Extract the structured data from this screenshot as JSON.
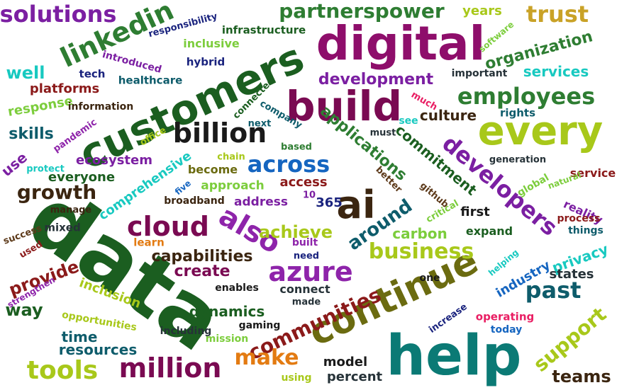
{
  "colors": {
    "purple": "#7b1fa2",
    "magenta": "#8e0e6b",
    "darkmagenta": "#7a0a52",
    "green": "#2e7d32",
    "darkgreen": "#1b5e20",
    "lime": "#a8c81a",
    "olive": "#6b6b10",
    "teal": "#0b7a75",
    "darkteal": "#0e5c6b",
    "cyan": "#18c9c0",
    "blue": "#1565c0",
    "navy": "#1a237e",
    "brown": "#5d3a1a",
    "darkbrown": "#3b2510",
    "orange": "#e37b12",
    "gold": "#c9a227",
    "red": "#c62828",
    "maroon": "#8b1a1a",
    "pink": "#e91e63",
    "violet": "#8e24aa",
    "lightgreen": "#7ccd3c",
    "darkslate": "#263238",
    "black": "#1a1a1a"
  },
  "words": [
    {
      "text": "data",
      "color": "darkgreen"
    },
    {
      "text": "help",
      "color": "teal"
    },
    {
      "text": "digital",
      "color": "magenta"
    },
    {
      "text": "customers",
      "color": "darkgreen"
    },
    {
      "text": "build",
      "color": "darkmagenta"
    },
    {
      "text": "every",
      "color": "lime"
    },
    {
      "text": "continue",
      "color": "olive"
    },
    {
      "text": "ai",
      "color": "darkbrown"
    },
    {
      "text": "azure",
      "color": "violet"
    },
    {
      "text": "also",
      "color": "violet"
    },
    {
      "text": "cloud",
      "color": "darkmagenta"
    },
    {
      "text": "million",
      "color": "darkmagenta"
    },
    {
      "text": "communities",
      "color": "maroon"
    },
    {
      "text": "developers",
      "color": "purple"
    },
    {
      "text": "linkedin",
      "color": "green"
    },
    {
      "text": "billion",
      "color": "black"
    },
    {
      "text": "employees",
      "color": "green"
    },
    {
      "text": "business",
      "color": "lime"
    },
    {
      "text": "across",
      "color": "blue"
    },
    {
      "text": "around",
      "color": "darkteal"
    },
    {
      "text": "tools",
      "color": "lime"
    },
    {
      "text": "solutions",
      "color": "purple"
    },
    {
      "text": "partnerspower",
      "color": "green"
    },
    {
      "text": "trust",
      "color": "gold"
    },
    {
      "text": "support",
      "color": "lime"
    },
    {
      "text": "past",
      "color": "darkteal"
    },
    {
      "text": "teams",
      "color": "darkbrown"
    },
    {
      "text": "applications",
      "color": "green"
    },
    {
      "text": "development",
      "color": "purple"
    },
    {
      "text": "organization",
      "color": "green"
    },
    {
      "text": "growth",
      "color": "darkbrown"
    },
    {
      "text": "make",
      "color": "orange"
    },
    {
      "text": "achieve",
      "color": "lime"
    },
    {
      "text": "capabilities",
      "color": "darkbrown"
    },
    {
      "text": "create",
      "color": "darkmagenta"
    },
    {
      "text": "provide",
      "color": "maroon"
    },
    {
      "text": "way",
      "color": "darkgreen"
    },
    {
      "text": "resources",
      "color": "darkteal"
    },
    {
      "text": "time",
      "color": "darkteal"
    },
    {
      "text": "dynamics",
      "color": "darkgreen"
    },
    {
      "text": "commitment",
      "color": "darkgreen"
    },
    {
      "text": "culture",
      "color": "darkbrown"
    },
    {
      "text": "skills",
      "color": "darkteal"
    },
    {
      "text": "well",
      "color": "cyan"
    },
    {
      "text": "privacy",
      "color": "cyan"
    },
    {
      "text": "services",
      "color": "cyan"
    },
    {
      "text": "carbon",
      "color": "lightgreen"
    },
    {
      "text": "comprehensive",
      "color": "cyan"
    },
    {
      "text": "everyone",
      "color": "darkgreen"
    },
    {
      "text": "ecosystem",
      "color": "purple"
    },
    {
      "text": "platforms",
      "color": "maroon"
    },
    {
      "text": "response",
      "color": "lightgreen"
    },
    {
      "text": "inclusion",
      "color": "lime"
    },
    {
      "text": "industry",
      "color": "blue"
    },
    {
      "text": "states",
      "color": "darkslate"
    },
    {
      "text": "model",
      "color": "black"
    },
    {
      "text": "percent",
      "color": "darkslate"
    },
    {
      "text": "first",
      "color": "black"
    },
    {
      "text": "expand",
      "color": "darkgreen"
    },
    {
      "text": "global",
      "color": "lightgreen"
    },
    {
      "text": "reality",
      "color": "purple"
    },
    {
      "text": "service",
      "color": "maroon"
    },
    {
      "text": "access",
      "color": "maroon"
    },
    {
      "text": "address",
      "color": "purple"
    },
    {
      "text": "approach",
      "color": "lightgreen"
    },
    {
      "text": "become",
      "color": "olive"
    },
    {
      "text": "use",
      "color": "purple"
    },
    {
      "text": "years",
      "color": "lime"
    },
    {
      "text": "inclusive",
      "color": "lightgreen"
    },
    {
      "text": "infrastructure",
      "color": "darkgreen"
    },
    {
      "text": "responsibility",
      "color": "navy"
    },
    {
      "text": "hybrid",
      "color": "navy"
    },
    {
      "text": "introduced",
      "color": "purple"
    },
    {
      "text": "tech",
      "color": "navy"
    },
    {
      "text": "healthcare",
      "color": "darkteal"
    },
    {
      "text": "information",
      "color": "darkbrown"
    },
    {
      "text": "pandemic",
      "color": "violet"
    },
    {
      "text": "office",
      "color": "lime"
    },
    {
      "text": "protect",
      "color": "cyan"
    },
    {
      "text": "connected",
      "color": "darkgreen"
    },
    {
      "text": "company",
      "color": "darkteal"
    },
    {
      "text": "next",
      "color": "darkteal"
    },
    {
      "text": "chain",
      "color": "lime"
    },
    {
      "text": "based",
      "color": "green"
    },
    {
      "text": "five",
      "color": "blue"
    },
    {
      "text": "broadband",
      "color": "darkbrown"
    },
    {
      "text": "manage",
      "color": "darkbrown"
    },
    {
      "text": "mixed",
      "color": "darkslate"
    },
    {
      "text": "success",
      "color": "brown"
    },
    {
      "text": "used",
      "color": "maroon"
    },
    {
      "text": "strengthen",
      "color": "violet"
    },
    {
      "text": "learn",
      "color": "orange"
    },
    {
      "text": "built",
      "color": "violet"
    },
    {
      "text": "need",
      "color": "navy"
    },
    {
      "text": "enables",
      "color": "black"
    },
    {
      "text": "connect",
      "color": "darkslate"
    },
    {
      "text": "made",
      "color": "darkslate"
    },
    {
      "text": "opportunities",
      "color": "lime"
    },
    {
      "text": "including",
      "color": "darkslate"
    },
    {
      "text": "gaming",
      "color": "black"
    },
    {
      "text": "mission",
      "color": "lightgreen"
    },
    {
      "text": "using",
      "color": "lime"
    },
    {
      "text": "increase",
      "color": "navy"
    },
    {
      "text": "operating",
      "color": "pink"
    },
    {
      "text": "today",
      "color": "blue"
    },
    {
      "text": "helping",
      "color": "cyan"
    },
    {
      "text": "one",
      "color": "black"
    },
    {
      "text": "things",
      "color": "darkteal"
    },
    {
      "text": "process",
      "color": "maroon"
    },
    {
      "text": "natural",
      "color": "lightgreen"
    },
    {
      "text": "generation",
      "color": "darkslate"
    },
    {
      "text": "rights",
      "color": "darkteal"
    },
    {
      "text": "important",
      "color": "darkslate"
    },
    {
      "text": "software",
      "color": "lightgreen"
    },
    {
      "text": "much",
      "color": "pink"
    },
    {
      "text": "must",
      "color": "darkslate"
    },
    {
      "text": "see",
      "color": "cyan"
    },
    {
      "text": "better",
      "color": "brown"
    },
    {
      "text": "github",
      "color": "brown"
    },
    {
      "text": "critical",
      "color": "lightgreen"
    },
    {
      "text": "10",
      "color": "purple"
    },
    {
      "text": "365",
      "color": "navy"
    }
  ]
}
